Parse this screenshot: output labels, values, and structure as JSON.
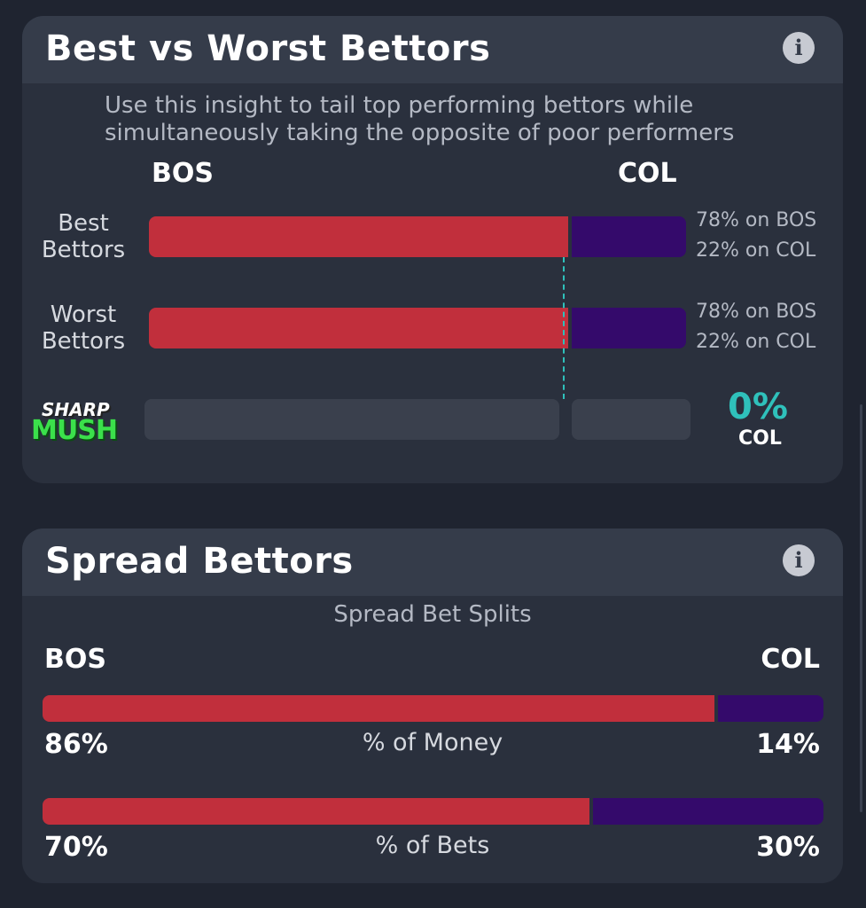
{
  "best_worst": {
    "title": "Best vs Worst Bettors",
    "info_icon": "info-icon",
    "subtitle": "Use this insight to tail top performing bettors while simultaneously taking the opposite of poor performers",
    "team_left": "BOS",
    "team_right": "COL",
    "rows": [
      {
        "label_line1": "Best",
        "label_line2": "Bettors",
        "left_pct": 78,
        "right_pct": 22,
        "left_text": "78% on BOS",
        "right_text": "22% on COL"
      },
      {
        "label_line1": "Worst",
        "label_line2": "Bettors",
        "left_pct": 78,
        "right_pct": 22,
        "left_text": "78% on BOS",
        "right_text": "22% on COL"
      }
    ],
    "sharp": {
      "logo_top": "SHARP",
      "logo_bottom": "MUSH",
      "pct": "0%",
      "team": "COL"
    }
  },
  "spread": {
    "title": "Spread Bettors",
    "info_icon": "info-icon",
    "splits_title": "Spread Bet Splits",
    "team_left": "BOS",
    "team_right": "COL",
    "money": {
      "label": "% of Money",
      "left": "86%",
      "right": "14%",
      "left_value": 86,
      "right_value": 14
    },
    "bets": {
      "label": "% of Bets",
      "left": "70%",
      "right": "30%",
      "left_value": 70,
      "right_value": 30
    }
  },
  "colors": {
    "bos": "#c12f3c",
    "col": "#340a6b",
    "accent": "#2fc1bb"
  }
}
